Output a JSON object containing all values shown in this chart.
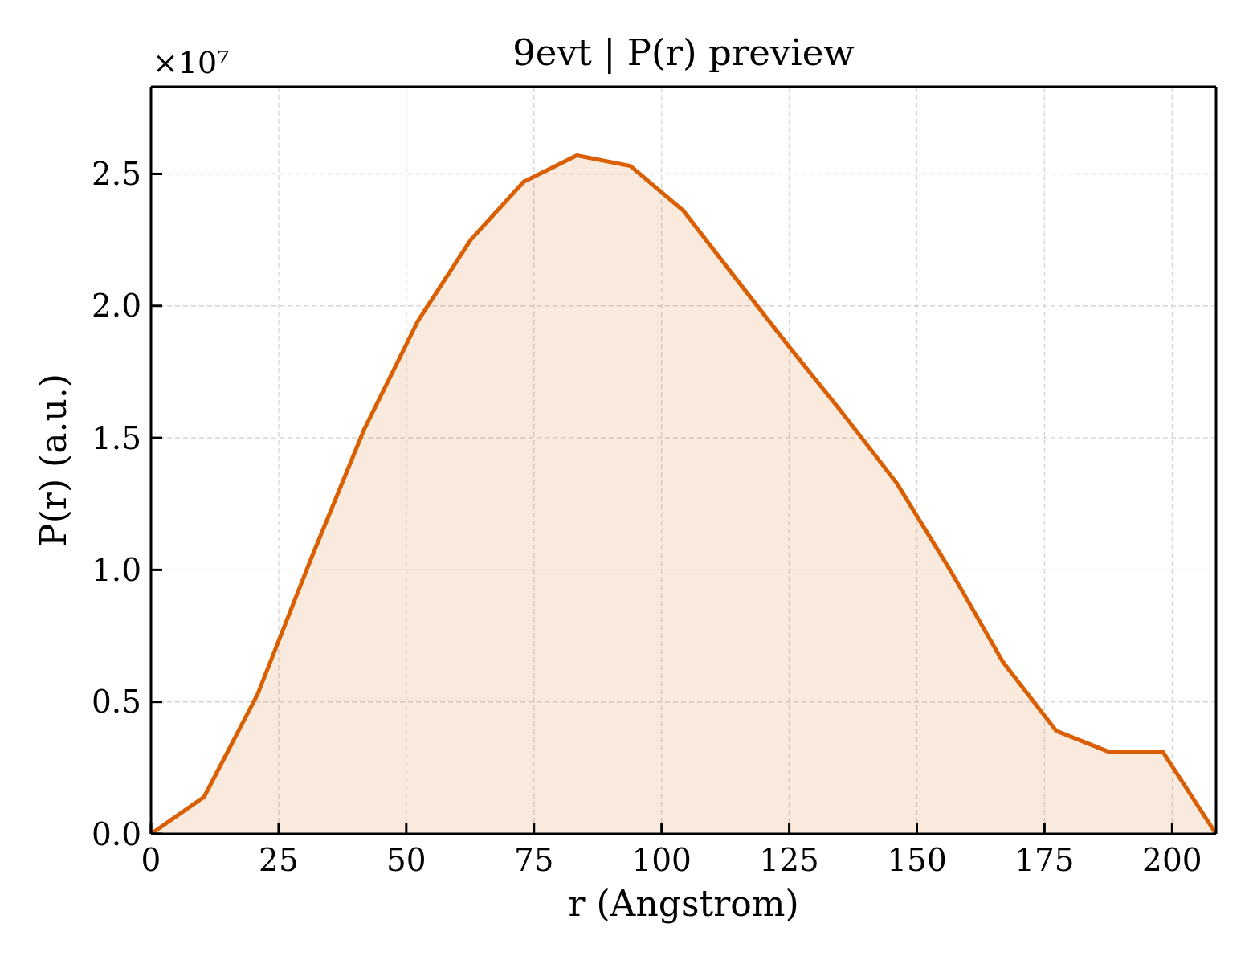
{
  "chart_data": {
    "type": "area",
    "title": "9evt | P(r) preview",
    "xlabel": "r (Angstrom)",
    "ylabel": "P(r) (a.u.)",
    "annotations": [
      "×10⁷"
    ],
    "x": [
      0,
      10.4,
      20.9,
      31.3,
      41.7,
      52.2,
      62.6,
      73.0,
      83.4,
      93.9,
      104.3,
      114.7,
      125.2,
      135.6,
      146.0,
      156.5,
      166.9,
      177.3,
      187.7,
      198.2,
      208.6
    ],
    "values": [
      0,
      0.14,
      0.53,
      1.04,
      1.53,
      1.94,
      2.25,
      2.47,
      2.57,
      2.53,
      2.36,
      2.1,
      1.84,
      1.59,
      1.33,
      1.0,
      0.65,
      0.39,
      0.31,
      0.31,
      0
    ],
    "color": "#d95f02",
    "xlim": [
      0,
      208.6
    ],
    "ylim": [
      0,
      2.83
    ],
    "xticks": [
      0,
      25,
      50,
      75,
      100,
      125,
      150,
      175,
      200
    ],
    "yticks": [
      {
        "value": 0,
        "label": "0.0"
      },
      0.5,
      {
        "value": 1,
        "label": "1.0"
      },
      1.5,
      {
        "value": 2,
        "label": "2.0"
      },
      2.5
    ],
    "grid": true
  }
}
